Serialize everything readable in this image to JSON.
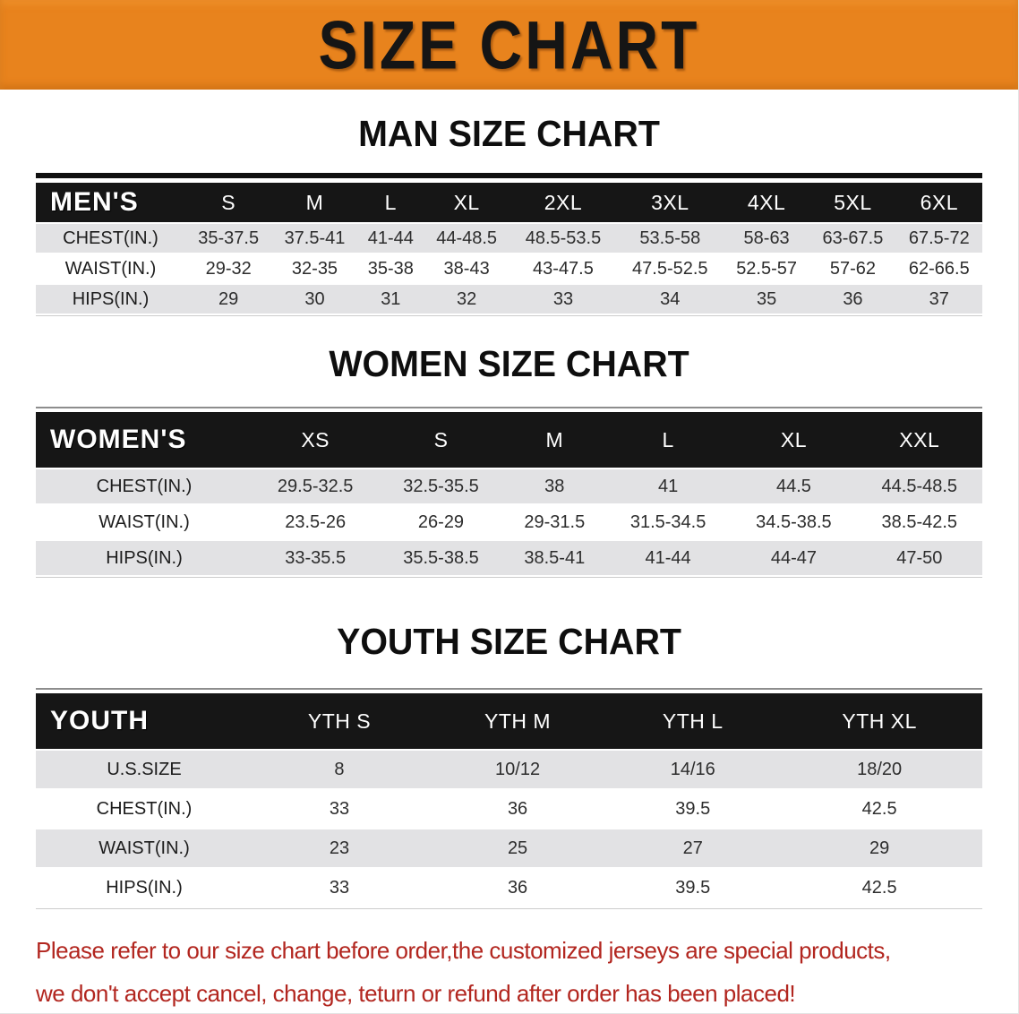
{
  "banner": {
    "title": "SIZE CHART",
    "bg_color": "#E8831D"
  },
  "colors": {
    "header_bg": "#161616",
    "row_alt_bg": "#E2E2E4",
    "footer_text": "#B2261F"
  },
  "sections": [
    {
      "heading": "MAN SIZE CHART",
      "corner": "MEN'S",
      "columns": [
        "S",
        "M",
        "L",
        "XL",
        "2XL",
        "3XL",
        "4XL",
        "5XL",
        "6XL"
      ],
      "rows": [
        {
          "label": "CHEST(IN.)",
          "values": [
            "35-37.5",
            "37.5-41",
            "41-44",
            "44-48.5",
            "48.5-53.5",
            "53.5-58",
            "58-63",
            "63-67.5",
            "67.5-72"
          ]
        },
        {
          "label": "WAIST(IN.)",
          "values": [
            "29-32",
            "32-35",
            "35-38",
            "38-43",
            "43-47.5",
            "47.5-52.5",
            "52.5-57",
            "57-62",
            "62-66.5"
          ]
        },
        {
          "label": "HIPS(IN.)",
          "values": [
            "29",
            "30",
            "31",
            "32",
            "33",
            "34",
            "35",
            "36",
            "37"
          ]
        }
      ]
    },
    {
      "heading": "WOMEN SIZE CHART",
      "corner": "WOMEN'S",
      "columns": [
        "XS",
        "S",
        "M",
        "L",
        "XL",
        "XXL"
      ],
      "rows": [
        {
          "label": "CHEST(IN.)",
          "values": [
            "29.5-32.5",
            "32.5-35.5",
            "38",
            "41",
            "44.5",
            "44.5-48.5"
          ]
        },
        {
          "label": "WAIST(IN.)",
          "values": [
            "23.5-26",
            "26-29",
            "29-31.5",
            "31.5-34.5",
            "34.5-38.5",
            "38.5-42.5"
          ]
        },
        {
          "label": "HIPS(IN.)",
          "values": [
            "33-35.5",
            "35.5-38.5",
            "38.5-41",
            "41-44",
            "44-47",
            "47-50"
          ]
        }
      ]
    },
    {
      "heading": "YOUTH SIZE CHART",
      "corner": "YOUTH",
      "columns": [
        "YTH S",
        "YTH M",
        "YTH L",
        "YTH XL"
      ],
      "rows": [
        {
          "label": "U.S.SIZE",
          "values": [
            "8",
            "10/12",
            "14/16",
            "18/20"
          ]
        },
        {
          "label": "CHEST(IN.)",
          "values": [
            "33",
            "36",
            "39.5",
            "42.5"
          ]
        },
        {
          "label": "WAIST(IN.)",
          "values": [
            "23",
            "25",
            "27",
            "29"
          ]
        },
        {
          "label": "HIPS(IN.)",
          "values": [
            "33",
            "36",
            "39.5",
            "42.5"
          ]
        }
      ]
    }
  ],
  "footer": {
    "line1": "Please refer to our size chart before order,the customized jerseys are special products,",
    "line2": "we don't accept cancel, change, teturn or refund after order has been placed!"
  }
}
